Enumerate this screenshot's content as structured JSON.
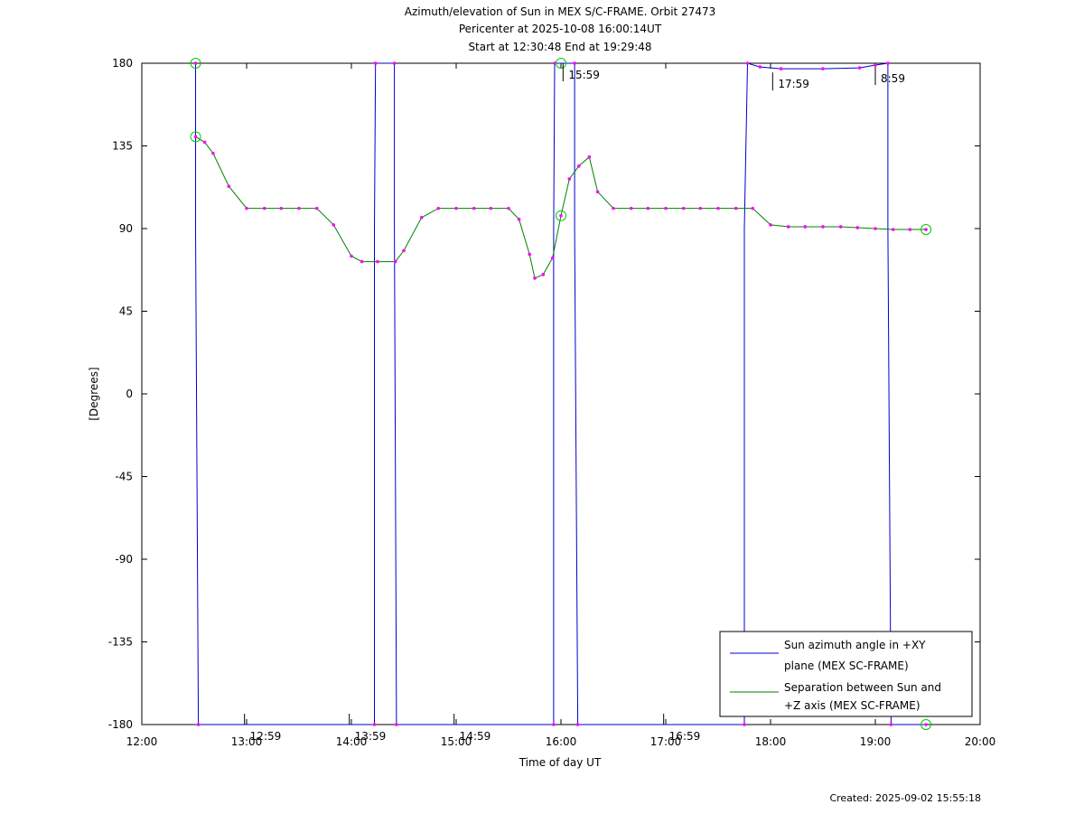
{
  "chart_data": {
    "type": "line",
    "title": "Azimuth/elevation of Sun in MEX S/C-FRAME.  Orbit 27473",
    "subtitle_1": "Pericenter at 2025-10-08 16:00:14UT",
    "subtitle_2": "Start at 12:30:48 End at 19:29:48",
    "xlabel": "Time of day UT",
    "ylabel": "[Degrees]",
    "xlim": [
      12.0,
      20.0
    ],
    "ylim": [
      -180,
      180
    ],
    "x_ticks": [
      12,
      13,
      14,
      15,
      16,
      17,
      18,
      19,
      20
    ],
    "x_tick_labels": [
      "12:00",
      "13:00",
      "14:00",
      "15:00",
      "16:00",
      "17:00",
      "18:00",
      "19:00",
      "20:00"
    ],
    "y_ticks": [
      180,
      135,
      90,
      45,
      0,
      -45,
      -90,
      -135,
      -180
    ],
    "y_tick_labels": [
      "180",
      "135",
      "90",
      "45",
      "0",
      "-45",
      "-90",
      "-135",
      "-180"
    ],
    "grid": false,
    "legend_position": "bottom-right",
    "series": [
      {
        "name": "Sun azimuth angle in +XY plane (MEX SC-FRAME)",
        "name_line1": "Sun azimuth angle in +XY",
        "name_line2": "plane (MEX SC-FRAME)",
        "color": "#0000cc",
        "x": [
          12.5133,
          12.5133,
          12.54,
          14.22,
          14.22,
          14.23,
          14.41,
          14.41,
          14.43,
          15.93,
          15.93,
          15.94,
          16.13,
          16.13,
          16.16,
          17.75,
          17.75,
          17.78,
          17.9,
          18.1,
          18.5,
          18.85,
          19.0,
          19.12,
          19.12,
          19.15,
          19.4833
        ],
        "y": [
          180,
          90,
          -180,
          -180,
          90,
          180,
          180,
          90,
          -180,
          -180,
          90,
          180,
          180,
          90,
          -180,
          -180,
          90,
          180,
          178,
          177,
          177,
          177.5,
          179,
          180,
          90,
          -180,
          -180
        ]
      },
      {
        "name": "Separation between Sun and +Z axis (MEX SC-FRAME)",
        "name_line1": "Separation between Sun and",
        "name_line2": "+Z axis (MEX SC-FRAME)",
        "color": "#008000",
        "x": [
          12.5133,
          12.6,
          12.68,
          12.83,
          13.0,
          13.17,
          13.33,
          13.5,
          13.67,
          13.83,
          14.0,
          14.1,
          14.25,
          14.42,
          14.5,
          14.67,
          14.83,
          15.0,
          15.17,
          15.33,
          15.5,
          15.6,
          15.7,
          15.75,
          15.83,
          15.92,
          16.0,
          16.08,
          16.17,
          16.27,
          16.35,
          16.5,
          16.67,
          16.83,
          17.0,
          17.17,
          17.33,
          17.5,
          17.67,
          17.83,
          18.0,
          18.17,
          18.33,
          18.5,
          18.67,
          18.83,
          19.0,
          19.17,
          19.33,
          19.4833
        ],
        "y": [
          140,
          137,
          131,
          113,
          101,
          101,
          101,
          101,
          101,
          92,
          75,
          72,
          72,
          72,
          78,
          96,
          101,
          101,
          101,
          101,
          101,
          95,
          76,
          63,
          65,
          74,
          97,
          117,
          124,
          129,
          110,
          101,
          101,
          101,
          101,
          101,
          101,
          101,
          101,
          101,
          92,
          91,
          91,
          91,
          91,
          90.5,
          90,
          89.5,
          89.5,
          89.5
        ]
      }
    ],
    "annotations": [
      {
        "label": "12:59",
        "x": 12.98,
        "y": -180
      },
      {
        "label": "13:59",
        "x": 13.98,
        "y": -180
      },
      {
        "label": "14:59",
        "x": 14.98,
        "y": -180
      },
      {
        "label": "15:59",
        "x": 16.02,
        "y": 180
      },
      {
        "label": "16:59",
        "x": 16.98,
        "y": -180
      },
      {
        "label": "17:59",
        "x": 18.02,
        "y": 175
      },
      {
        "label": "8:59",
        "x": 19.0,
        "y": 178
      }
    ],
    "colors": {
      "azimuth": "#0000cc",
      "separation": "#008000",
      "markers": "#ff00ff",
      "circles": "#00cc00"
    }
  },
  "footer": {
    "created": "Created: 2025-09-02 15:55:18"
  }
}
